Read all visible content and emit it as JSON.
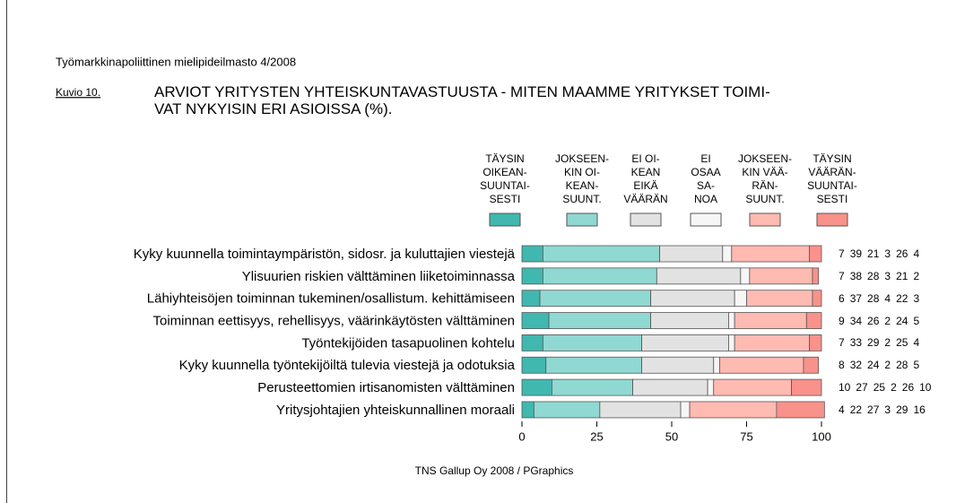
{
  "chart_data": {
    "type": "stacked_bar_horizontal",
    "header": "Työmarkkinapoliittinen mielipideilmasto 4/2008",
    "figure_label": "Kuvio 10.",
    "title": "ARVIOT YRITYSTEN YHTEISKUNTAVASTUUSTA - MITEN MAAMME YRITYKSET TOIMI-\nVAT NYKYISIN ERI ASIOISSA (%).",
    "source": "TNS Gallup Oy 2008 / PGraphics",
    "categories": [
      "Kyky kuunnella toimintaympäristön, sidosr. ja kuluttajien viestejä",
      "Ylisuurien riskien välttäminen liiketoiminnassa",
      "Lähiyhteisöjen toiminnan tukeminen/osallistum. kehittämiseen",
      "Toiminnan eettisyys, rehellisyys, väärinkäytösten välttäminen",
      "Työntekijöiden tasapuolinen kohtelu",
      "Kyky kuunnella työntekijöiltä tulevia viestejä ja odotuksia",
      "Perusteettomien irtisanomisten välttäminen",
      "Yritysjohtajien yhteiskunnallinen moraali"
    ],
    "series": [
      {
        "name": "TÄYSIN\nOIKEAN-\nSUUNTAI-\nSESTI",
        "color": "#40b8b0",
        "values": [
          7,
          7,
          6,
          9,
          7,
          8,
          10,
          4
        ]
      },
      {
        "name": "JOKSEEN-\nKIN OI-\nKEAN-\nSUUNT.",
        "color": "#90d8d2",
        "values": [
          39,
          38,
          37,
          34,
          33,
          32,
          27,
          22
        ]
      },
      {
        "name": "EI OI-\nKEAN\nEIKÄ\nVÄÄRÄN",
        "color": "#e2e2e2",
        "values": [
          21,
          28,
          28,
          26,
          29,
          24,
          25,
          27
        ]
      },
      {
        "name": "EI\nOSAA\nSA-\nNOA",
        "color": "#f6f6f6",
        "values": [
          3,
          3,
          4,
          2,
          2,
          2,
          2,
          3
        ]
      },
      {
        "name": "JOKSEEN-\nKIN VÄÄ-\nRÄN-\nSUUNT.",
        "color": "#ffbab2",
        "values": [
          26,
          21,
          22,
          24,
          25,
          28,
          26,
          29
        ]
      },
      {
        "name": "TÄYSIN\nVÄÄRÄN-\nSUUNTAI-\nSESTI",
        "color": "#f8928a",
        "values": [
          4,
          2,
          3,
          5,
          4,
          5,
          10,
          16
        ]
      }
    ],
    "xlim": [
      0,
      100
    ],
    "xticks": [
      0,
      25,
      50,
      75,
      100
    ]
  }
}
